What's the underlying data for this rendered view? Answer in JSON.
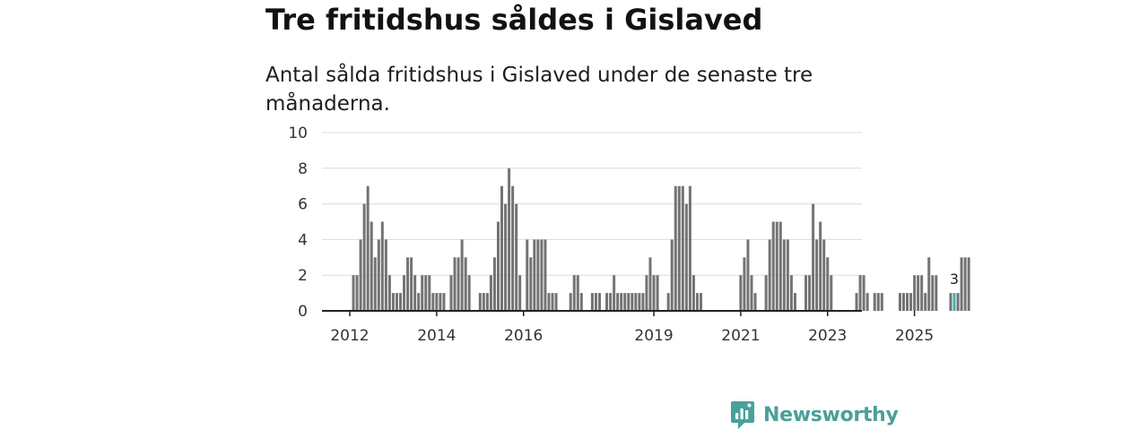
{
  "chart_data": {
    "type": "bar",
    "title": "Tre fritidshus såldes i Gislaved",
    "subtitle": "Antal sålda fritidshus i Gislaved under de senaste tre månaderna.",
    "xlabel": "",
    "ylabel": "",
    "ylim": [
      0,
      10
    ],
    "yticks": [
      0,
      2,
      4,
      6,
      8,
      10
    ],
    "grid": true,
    "start": "2012-01",
    "x_ticks": [
      "2012",
      "2014",
      "2016",
      "2019",
      "2021",
      "2023",
      "2025"
    ],
    "values": [
      0,
      2,
      2,
      4,
      6,
      7,
      5,
      3,
      4,
      5,
      4,
      2,
      1,
      1,
      1,
      2,
      3,
      3,
      2,
      1,
      2,
      2,
      2,
      1,
      1,
      1,
      1,
      0,
      2,
      3,
      3,
      4,
      3,
      2,
      0,
      0,
      1,
      1,
      1,
      2,
      3,
      5,
      7,
      6,
      8,
      7,
      6,
      2,
      0,
      4,
      3,
      4,
      4,
      4,
      4,
      1,
      1,
      1,
      0,
      0,
      0,
      1,
      2,
      2,
      1,
      0,
      0,
      1,
      1,
      1,
      0,
      1,
      1,
      2,
      1,
      1,
      1,
      1,
      1,
      1,
      1,
      1,
      2,
      3,
      2,
      2,
      0,
      0,
      1,
      4,
      7,
      7,
      7,
      6,
      7,
      2,
      1,
      1,
      0,
      0,
      0,
      0,
      0,
      0,
      0,
      0,
      0,
      0,
      2,
      3,
      4,
      2,
      1,
      0,
      0,
      2,
      4,
      5,
      5,
      5,
      4,
      4,
      2,
      1,
      0,
      0,
      2,
      2,
      6,
      4,
      5,
      4,
      3,
      2,
      0,
      0,
      0,
      0,
      0,
      0,
      1,
      2,
      2,
      1,
      0,
      1,
      1,
      1,
      0,
      0,
      0,
      0,
      1,
      1,
      1,
      1,
      2,
      2,
      2,
      1,
      3,
      2,
      2,
      0,
      0,
      0,
      1,
      1,
      1,
      3,
      3,
      3
    ],
    "highlight_index": 167,
    "highlight_label": "3",
    "colors": {
      "bar": "#737373",
      "highlight": "#3fb2ac",
      "grid": "#dcdcdc",
      "axis": "#222222"
    }
  },
  "brand": {
    "name": "Newsworthy",
    "color": "#4aa09a"
  }
}
